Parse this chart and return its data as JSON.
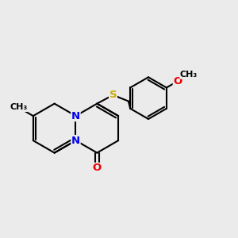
{
  "bg_color": "#ebebeb",
  "bond_color": "#000000",
  "bond_width": 1.5,
  "atom_colors": {
    "N": "#0000ee",
    "O": "#ee0000",
    "S": "#ccaa00",
    "C": "#000000"
  },
  "font_size_atom": 9.5,
  "font_size_small": 8.0,
  "fig_width": 3.0,
  "fig_height": 3.0,
  "dpi": 100
}
